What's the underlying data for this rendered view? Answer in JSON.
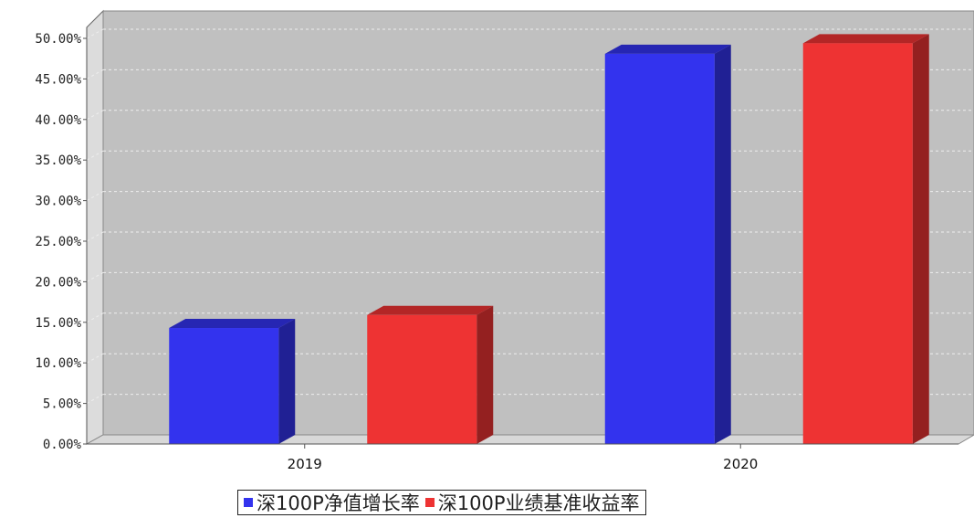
{
  "chart_data": {
    "type": "bar",
    "categories": [
      "2019",
      "2020"
    ],
    "series": [
      {
        "name": "深100P净值增长率",
        "values": [
          14.3,
          48.1
        ],
        "color": "#3333ee"
      },
      {
        "name": "深100P业绩基准收益率",
        "values": [
          15.9,
          49.4
        ],
        "color": "#ee3333"
      }
    ],
    "ylim": [
      0,
      50
    ],
    "yticks": [
      0,
      5,
      10,
      15,
      20,
      25,
      30,
      35,
      40,
      45,
      50
    ],
    "ytick_labels": [
      "0.00%",
      "5.00%",
      "10.00%",
      "15.00%",
      "20.00%",
      "25.00%",
      "30.00%",
      "35.00%",
      "40.00%",
      "45.00%",
      "50.00%"
    ],
    "grid": true,
    "legend_position": "bottom-center",
    "style": "3d",
    "plot_background": "#c0c0c0"
  }
}
